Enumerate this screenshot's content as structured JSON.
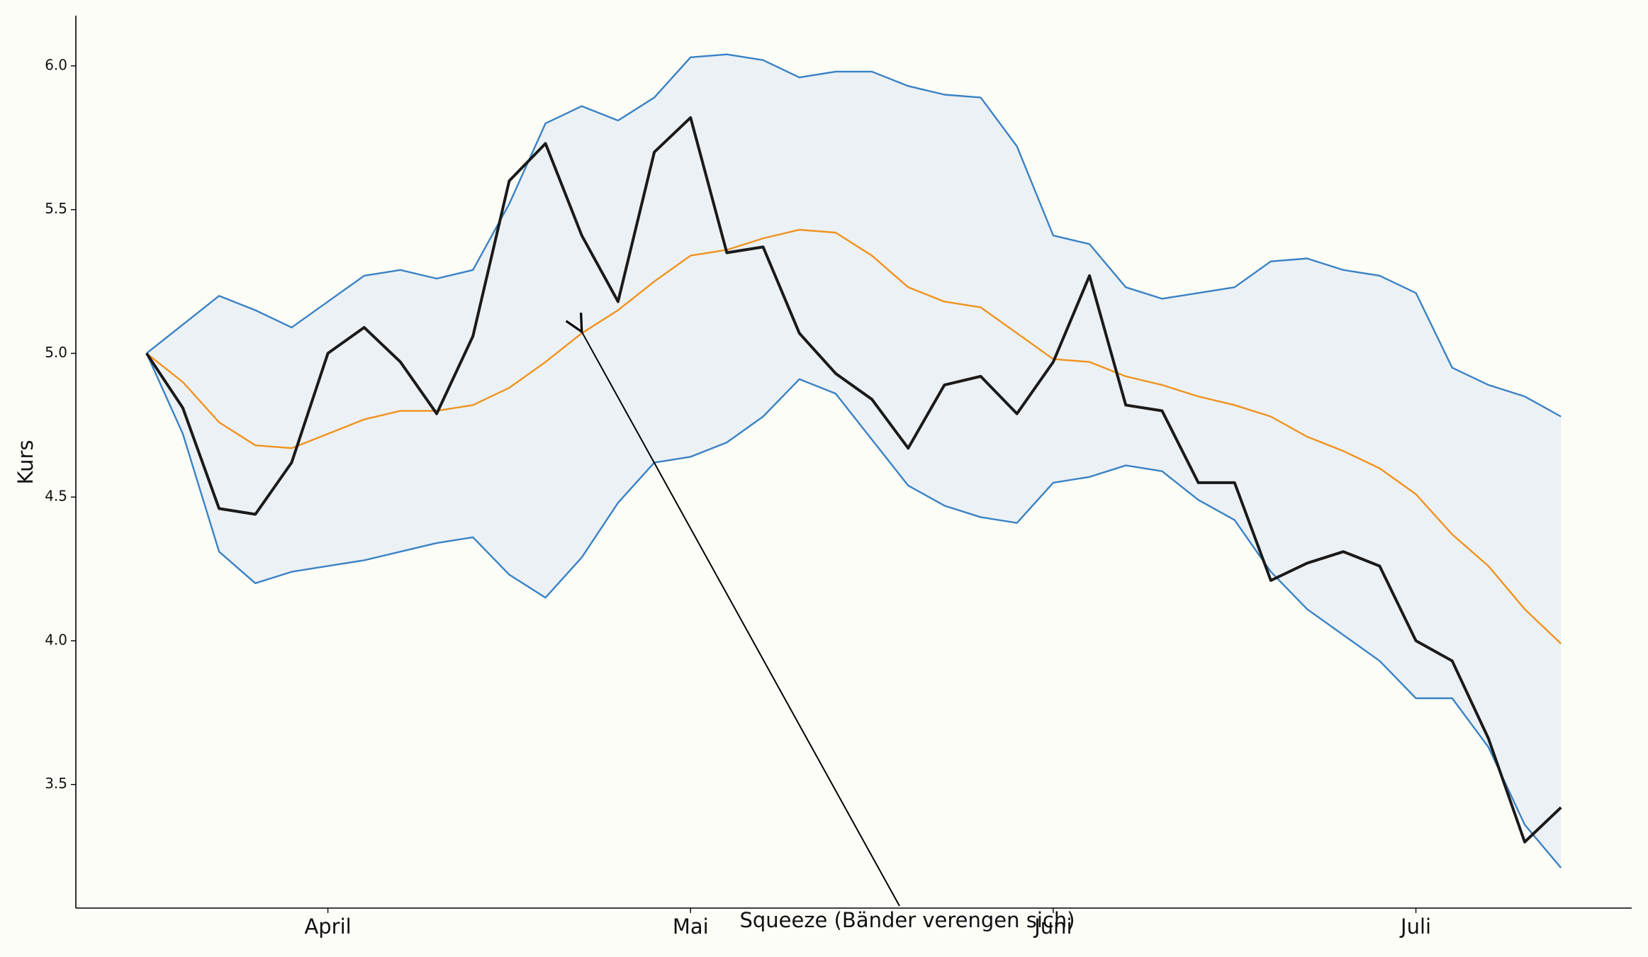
{
  "chart_data": {
    "type": "line",
    "y_label": "Kurs",
    "annotation": "Squeeze (Bänder verengen sich)",
    "x": [
      0,
      1,
      2,
      3,
      4,
      5,
      6,
      7,
      8,
      9,
      10,
      11,
      12,
      13,
      14,
      15,
      16,
      17,
      18,
      19,
      20,
      21,
      22,
      23,
      24,
      25,
      26,
      27,
      28,
      29,
      30,
      31,
      32,
      33,
      34,
      35,
      36,
      37,
      38,
      39
    ],
    "xlim": [
      -1.95,
      40.95
    ],
    "xticks": [
      {
        "value": 5,
        "label": "April"
      },
      {
        "value": 15,
        "label": "Mai"
      },
      {
        "value": 25,
        "label": "Juni"
      },
      {
        "value": 35,
        "label": "Juli"
      }
    ],
    "ylim": [
      3.07,
      6.175
    ],
    "yticks": [
      {
        "value": 3.5,
        "label": "3.5"
      },
      {
        "value": 4,
        "label": "4.0"
      },
      {
        "value": 4.5,
        "label": "4.5"
      },
      {
        "value": 5,
        "label": "5.0"
      },
      {
        "value": 5.5,
        "label": "5.5"
      },
      {
        "value": 6,
        "label": "6.0"
      }
    ],
    "band_color": "#ecf1f5",
    "series": [
      {
        "color": "#3a82c4",
        "values": [
          5.0,
          5.1,
          5.2,
          5.15,
          5.09,
          5.18,
          5.27,
          5.29,
          5.26,
          5.29,
          5.52,
          5.8,
          5.86,
          5.81,
          5.89,
          6.03,
          6.04,
          6.02,
          5.96,
          5.98,
          5.98,
          5.93,
          5.9,
          5.89,
          5.72,
          5.41,
          5.38,
          5.23,
          5.19,
          5.21,
          5.23,
          5.32,
          5.33,
          5.29,
          5.27,
          5.21,
          4.95,
          4.89,
          4.85,
          4.78
        ]
      },
      {
        "color": "#3a82c4",
        "values": [
          5.0,
          4.72,
          4.31,
          4.2,
          4.24,
          4.26,
          4.28,
          4.31,
          4.34,
          4.36,
          4.23,
          4.15,
          4.29,
          4.48,
          4.62,
          4.64,
          4.69,
          4.78,
          4.91,
          4.86,
          4.7,
          4.54,
          4.47,
          4.43,
          4.41,
          4.55,
          4.57,
          4.61,
          4.59,
          4.49,
          4.42,
          4.24,
          4.11,
          4.02,
          3.93,
          3.8,
          3.8,
          3.63,
          3.36,
          3.21
        ]
      },
      {
        "color": "#f0921e",
        "values": [
          5.0,
          4.9,
          4.76,
          4.68,
          4.67,
          4.72,
          4.77,
          4.8,
          4.8,
          4.82,
          4.88,
          4.97,
          5.07,
          5.15,
          5.25,
          5.34,
          5.36,
          5.4,
          5.43,
          5.42,
          5.34,
          5.23,
          5.18,
          5.16,
          5.07,
          4.98,
          4.97,
          4.92,
          4.89,
          4.85,
          4.82,
          4.78,
          4.71,
          4.66,
          4.6,
          4.51,
          4.37,
          4.26,
          4.11,
          3.99
        ]
      },
      {
        "color": "#1a1a1a",
        "values": [
          5.0,
          4.81,
          4.46,
          4.44,
          4.62,
          5.0,
          5.09,
          4.97,
          4.79,
          5.06,
          5.6,
          5.73,
          5.41,
          5.18,
          5.7,
          5.82,
          5.35,
          5.37,
          5.07,
          4.93,
          4.84,
          4.67,
          4.89,
          4.92,
          4.79,
          4.97,
          5.27,
          4.82,
          4.8,
          4.55,
          4.55,
          4.21,
          4.27,
          4.31,
          4.26,
          4.0,
          3.93,
          3.66,
          3.3,
          3.42
        ]
      }
    ]
  }
}
